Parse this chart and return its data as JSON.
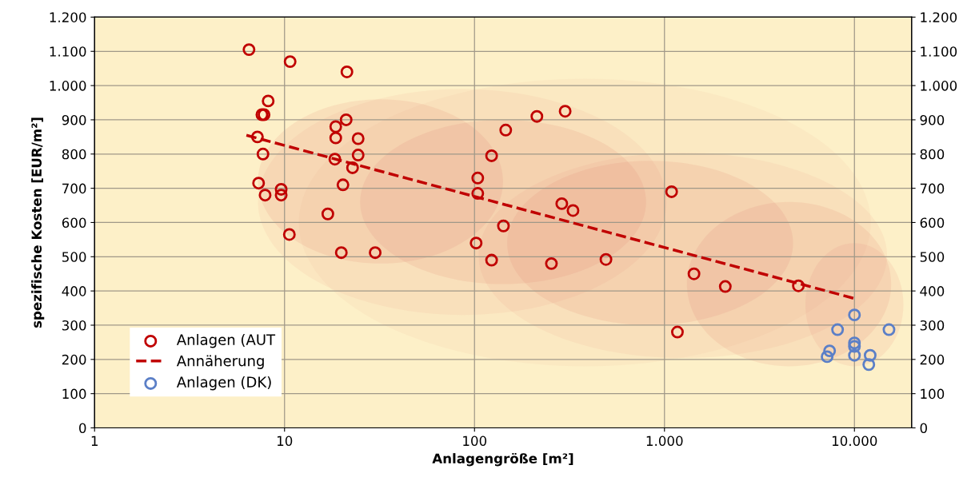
{
  "chart_data": {
    "type": "scatter",
    "xlabel": "Anlagengröße [m²]",
    "ylabel": "spezifische Kosten [EUR/m²]",
    "log": "x",
    "grid": true,
    "legend": "bottom left",
    "xlim": [
      1,
      20000
    ],
    "xticks": [
      1,
      10,
      100,
      {
        "value": 1000,
        "label": "1.000"
      },
      {
        "value": 10000,
        "label": "10.000"
      }
    ],
    "ylim": [
      0,
      1200
    ],
    "yticks": [
      0,
      100,
      200,
      300,
      400,
      500,
      600,
      700,
      800,
      900,
      {
        "value": 1000,
        "label": "1.000"
      },
      {
        "value": 1100,
        "label": "1.100"
      },
      {
        "value": 1200,
        "label": "1.200"
      }
    ],
    "y2lim": [
      0,
      1200
    ],
    "y2ticks": [
      0,
      100,
      200,
      300,
      400,
      500,
      600,
      700,
      800,
      900,
      {
        "value": 1000,
        "label": "1.000"
      },
      {
        "value": 1100,
        "label": "1.100"
      },
      {
        "value": 1200,
        "label": "1.200"
      }
    ],
    "series": [
      {
        "name": "Anlagen (AUT",
        "marker": "circle",
        "color": "#c00000",
        "x": [
          6.5,
          10.7,
          21.3,
          8.2,
          7.6,
          7.8,
          7.2,
          21.1,
          18.6,
          18.6,
          24.4,
          7.7,
          24.4,
          18.4,
          22.8,
          7.3,
          20.3,
          9.6,
          9.6,
          7.9,
          16.9,
          10.6,
          19.9,
          30,
          146,
          213,
          300,
          123,
          104,
          104,
          288,
          330,
          142,
          102,
          123,
          254,
          492,
          1090,
          1170,
          1430,
          2090,
          5070
        ],
        "values": [
          1105,
          1070,
          1040,
          955,
          915,
          915,
          850,
          900,
          880,
          847,
          845,
          800,
          797,
          785,
          760,
          715,
          710,
          697,
          680,
          680,
          625,
          565,
          512,
          512,
          870,
          910,
          925,
          795,
          730,
          685,
          655,
          635,
          590,
          540,
          490,
          480,
          492,
          690,
          280,
          450,
          413,
          415
        ]
      },
      {
        "name": "Annäherung",
        "type": "line",
        "marker": "none",
        "line_style": "dashed",
        "color": "#c00000",
        "x": [
          6.3,
          10000
        ],
        "values": [
          855,
          378
        ]
      },
      {
        "name": "Anlagen (DK)",
        "marker": "circle",
        "color": "#5b7fc7",
        "x": [
          10000,
          8150,
          15200,
          10000,
          10000,
          10000,
          7400,
          7180,
          12100,
          11900
        ],
        "values": [
          330,
          287,
          287,
          248,
          238,
          212,
          225,
          208,
          212,
          185
        ]
      }
    ]
  }
}
